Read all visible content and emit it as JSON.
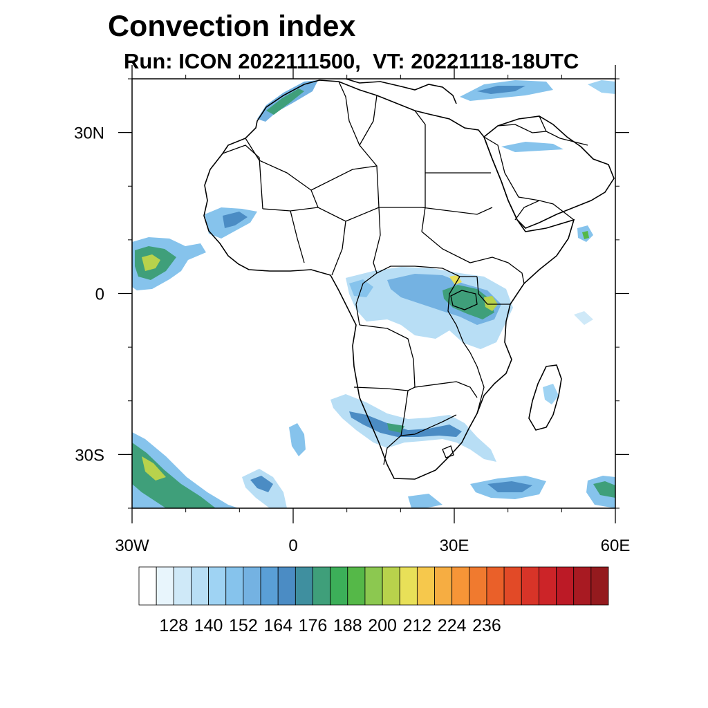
{
  "title": "Convection index",
  "subtitle": "Run: ICON 2022111500,  VT: 20221118-18UTC",
  "map": {
    "lon_range": [
      -30,
      60
    ],
    "lat_range": [
      -40,
      40
    ],
    "lon_ticks": [
      {
        "value": -30,
        "label": "30W"
      },
      {
        "value": 0,
        "label": "0"
      },
      {
        "value": 30,
        "label": "30E"
      },
      {
        "value": 60,
        "label": "60E"
      }
    ],
    "lat_ticks": [
      {
        "value": 30,
        "label": "30N"
      },
      {
        "value": 0,
        "label": "0"
      },
      {
        "value": -30,
        "label": "30S"
      }
    ]
  },
  "colorbar": {
    "colors": [
      "#ffffff",
      "#e8f5fc",
      "#cfe9f8",
      "#b8def5",
      "#9fd3f3",
      "#86c3ec",
      "#74b2e2",
      "#5a9fd6",
      "#4b8cc4",
      "#3f8f9f",
      "#3f9f7a",
      "#3caf59",
      "#55b848",
      "#8cc850",
      "#b8d24c",
      "#e8e058",
      "#f6c84c",
      "#f6ad42",
      "#f69537",
      "#f07a2f",
      "#ea6029",
      "#e24a27",
      "#d83428",
      "#cc2428",
      "#bc1a26",
      "#a81a22",
      "#941a1e"
    ],
    "labels": [
      "128",
      "140",
      "152",
      "164",
      "176",
      "188",
      "200",
      "212",
      "224",
      "236"
    ]
  }
}
